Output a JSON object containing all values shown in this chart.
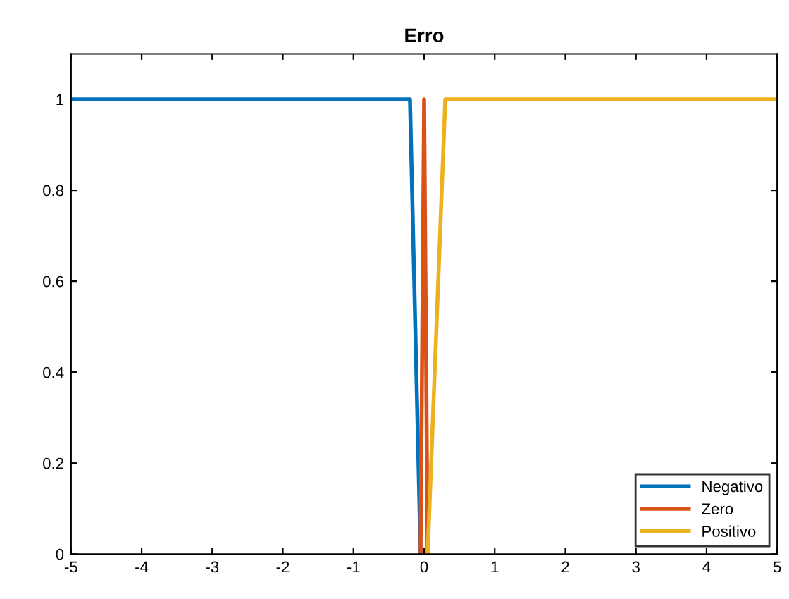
{
  "chart_data": {
    "type": "line",
    "title": "Erro",
    "series": [
      {
        "name": "Negativo",
        "color": "#0072bd",
        "x": [
          -5,
          -0.2,
          -0.05
        ],
        "values": [
          1,
          1,
          0
        ]
      },
      {
        "name": "Zero",
        "color": "#d95319",
        "x": [
          -0.05,
          0,
          0.05
        ],
        "values": [
          0,
          1,
          0
        ]
      },
      {
        "name": "Positivo",
        "color": "#edb120",
        "x": [
          0.05,
          0.3,
          5
        ],
        "values": [
          0,
          1,
          1
        ]
      }
    ],
    "xlim": [
      -5,
      5
    ],
    "xticks": [
      -5,
      -4,
      -3,
      -2,
      -1,
      0,
      1,
      2,
      3,
      4,
      5
    ],
    "ylim": [
      0,
      1.1
    ],
    "yticks": [
      0,
      0.2,
      0.4,
      0.6,
      0.8,
      1
    ],
    "grid": false,
    "legend": "bottom right",
    "marker": "none",
    "line_style": "solid"
  }
}
